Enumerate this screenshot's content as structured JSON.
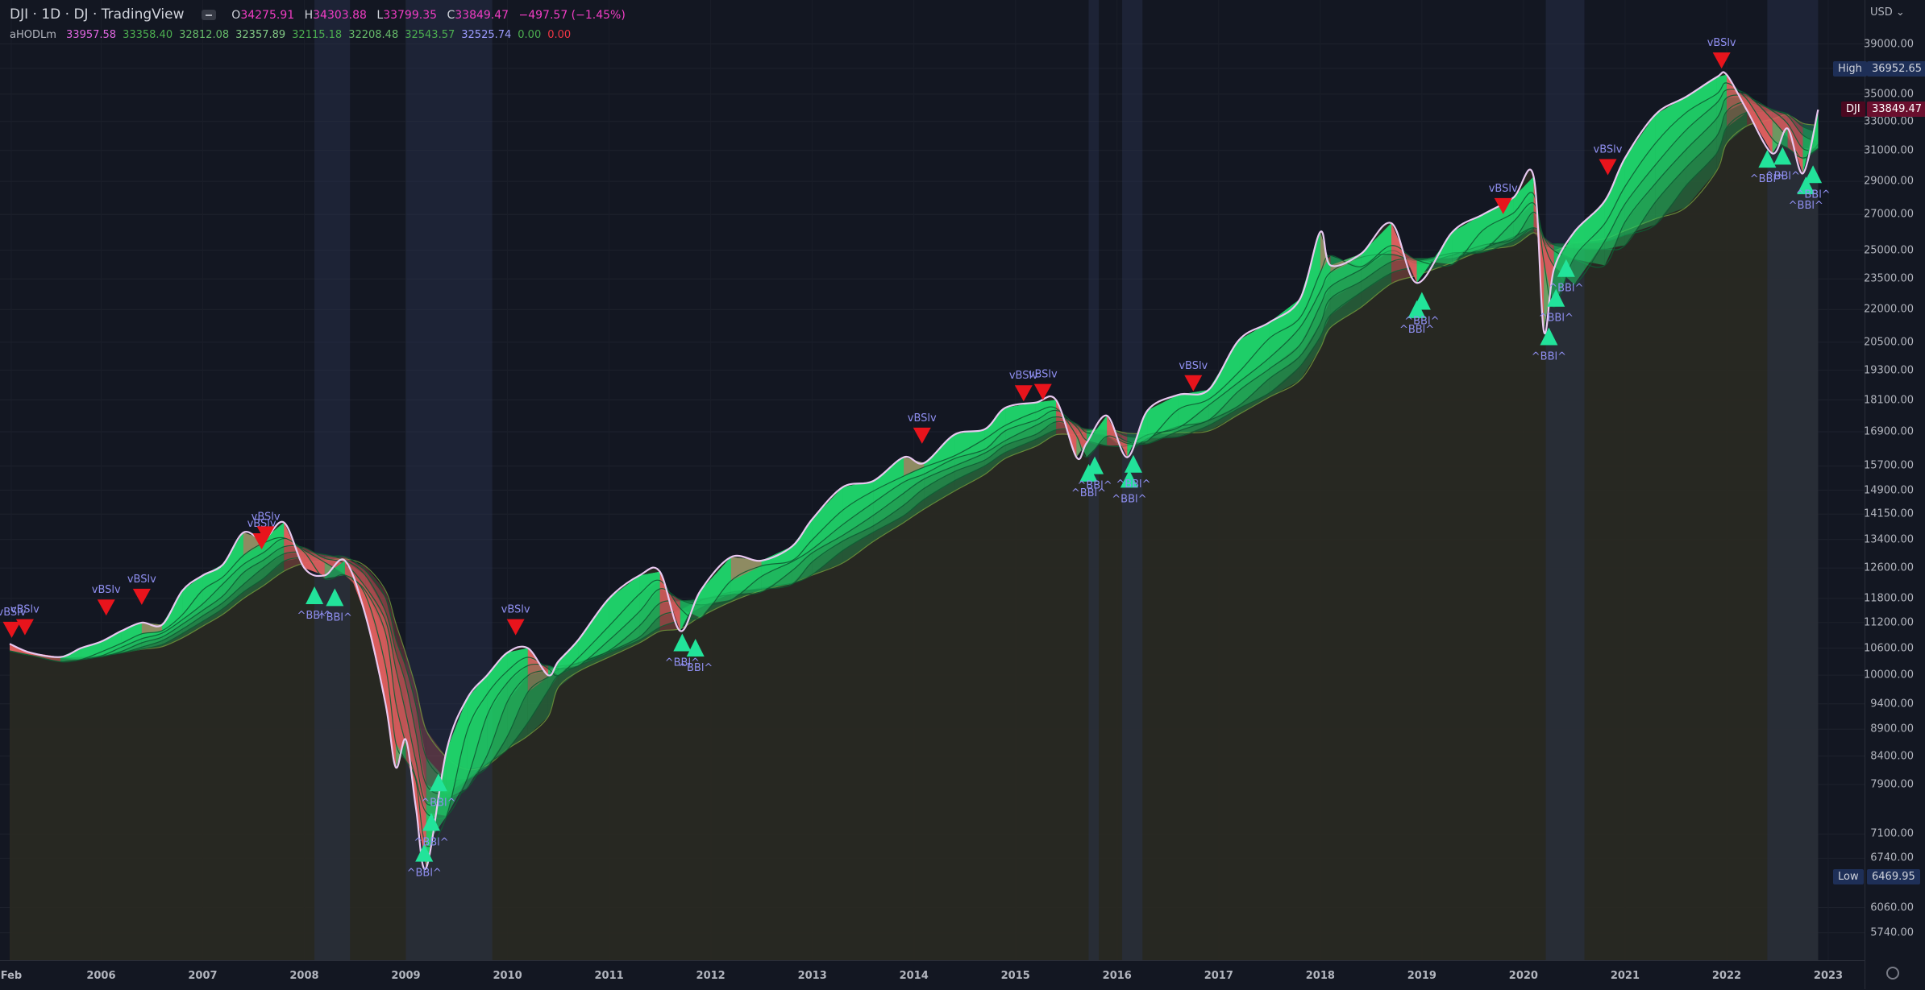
{
  "header": {
    "symbol": "DJI · 1D · DJ · TradingView",
    "ohlc": {
      "open_label": "O",
      "open": "34275.91",
      "high_label": "H",
      "high": "34303.88",
      "low_label": "L",
      "low": "33799.35",
      "close_label": "C",
      "close": "33849.47",
      "change": "−497.57 (−1.45%)"
    }
  },
  "indicator": {
    "name": "aHODLm",
    "values": [
      "33957.58",
      "33358.40",
      "32812.08",
      "32357.89",
      "32115.18",
      "32208.48",
      "32543.57",
      "32525.74",
      "0.00",
      "0.00"
    ],
    "colors": [
      "#e066e0",
      "#4caf50",
      "#66bb6a",
      "#81c784",
      "#4caf50",
      "#66bb6a",
      "#4caf50",
      "#9c9cff",
      "#4caf50",
      "#f23645"
    ]
  },
  "price_axis": {
    "currency": "USD",
    "ticks": [
      "39000.00",
      "37000.00",
      "35000.00",
      "33000.00",
      "31000.00",
      "29000.00",
      "27000.00",
      "25000.00",
      "23500.00",
      "22000.00",
      "20500.00",
      "19300.00",
      "18100.00",
      "16900.00",
      "15700.00",
      "14900.00",
      "14150.00",
      "13400.00",
      "12600.00",
      "11800.00",
      "11200.00",
      "10600.00",
      "10000.00",
      "9400.00",
      "8900.00",
      "8400.00",
      "7900.00",
      "7100.00",
      "6740.00",
      "6060.00",
      "5740.00"
    ],
    "badges": [
      {
        "label": "High",
        "value": "36952.65"
      },
      {
        "label": "DJI",
        "value": "33849.47"
      },
      {
        "label": "Low",
        "value": "6469.95"
      }
    ]
  },
  "time_axis": {
    "ticks": [
      "Feb",
      "2006",
      "2007",
      "2008",
      "2009",
      "2010",
      "2011",
      "2012",
      "2013",
      "2014",
      "2015",
      "2016",
      "2017",
      "2018",
      "2019",
      "2020",
      "2021",
      "2022",
      "2023"
    ]
  },
  "chart_data": {
    "type": "line",
    "y_scale": "log",
    "x_range": [
      2005.1,
      2023.0
    ],
    "ylim": [
      5600,
      40000
    ],
    "series": [
      {
        "name": "DJI",
        "x": [
          2005.1,
          2005.3,
          2005.6,
          2005.8,
          2006.0,
          2006.2,
          2006.4,
          2006.6,
          2006.8,
          2007.0,
          2007.2,
          2007.4,
          2007.6,
          2007.8,
          2008.0,
          2008.2,
          2008.4,
          2008.6,
          2008.8,
          2008.9,
          2009.0,
          2009.1,
          2009.2,
          2009.4,
          2009.6,
          2009.8,
          2010.0,
          2010.2,
          2010.4,
          2010.5,
          2010.7,
          2011.0,
          2011.3,
          2011.5,
          2011.7,
          2011.9,
          2012.2,
          2012.5,
          2012.8,
          2013.0,
          2013.3,
          2013.6,
          2013.9,
          2014.1,
          2014.4,
          2014.7,
          2014.9,
          2015.2,
          2015.4,
          2015.6,
          2015.7,
          2015.9,
          2016.1,
          2016.3,
          2016.6,
          2016.9,
          2017.2,
          2017.5,
          2017.8,
          2018.0,
          2018.1,
          2018.4,
          2018.7,
          2018.95,
          2019.3,
          2019.6,
          2019.9,
          2020.1,
          2020.2,
          2020.3,
          2020.5,
          2020.8,
          2021.0,
          2021.3,
          2021.6,
          2021.9,
          2022.0,
          2022.2,
          2022.45,
          2022.6,
          2022.75,
          2022.9
        ],
        "y": [
          10700,
          10500,
          10400,
          10600,
          10750,
          11000,
          11200,
          11150,
          12000,
          12400,
          12700,
          13600,
          13400,
          13900,
          12600,
          12400,
          12800,
          11400,
          9400,
          8200,
          8700,
          7500,
          6600,
          8500,
          9500,
          10000,
          10500,
          10600,
          10000,
          10300,
          10800,
          11800,
          12400,
          12500,
          11000,
          12000,
          12900,
          12800,
          13200,
          14000,
          15000,
          15200,
          16000,
          15800,
          16800,
          17000,
          17800,
          18000,
          18100,
          16000,
          16500,
          17500,
          16000,
          17700,
          18300,
          18500,
          20600,
          21400,
          22500,
          26000,
          24200,
          24800,
          26500,
          23300,
          26000,
          27000,
          28000,
          29300,
          21000,
          24000,
          26000,
          27800,
          30500,
          33500,
          34800,
          36300,
          36500,
          33800,
          30800,
          32500,
          29500,
          33849
        ]
      }
    ],
    "signals": {
      "sell_label": "vBSlv",
      "buy_label": "^BBl^",
      "sell": [
        [
          2005.12,
          10990
        ],
        [
          2005.25,
          11050
        ],
        [
          2006.05,
          11530
        ],
        [
          2006.4,
          11800
        ],
        [
          2007.58,
          13300
        ],
        [
          2007.62,
          13500
        ],
        [
          2010.08,
          11050
        ],
        [
          2014.08,
          16700
        ],
        [
          2015.08,
          18300
        ],
        [
          2015.27,
          18350
        ],
        [
          2016.75,
          18700
        ],
        [
          2019.8,
          27400
        ],
        [
          2020.83,
          29800
        ],
        [
          2021.95,
          37500
        ]
      ],
      "buy": [
        [
          2008.1,
          11900
        ],
        [
          2008.3,
          11850
        ],
        [
          2009.18,
          6830
        ],
        [
          2009.25,
          7300
        ],
        [
          2009.32,
          7950
        ],
        [
          2011.72,
          10750
        ],
        [
          2011.85,
          10630
        ],
        [
          2015.72,
          15500
        ],
        [
          2015.78,
          15750
        ],
        [
          2016.12,
          15300
        ],
        [
          2016.16,
          15800
        ],
        [
          2018.95,
          22050
        ],
        [
          2019.0,
          22450
        ],
        [
          2020.25,
          20800
        ],
        [
          2020.32,
          22600
        ],
        [
          2020.42,
          24100
        ],
        [
          2022.4,
          30500
        ],
        [
          2022.55,
          30700
        ],
        [
          2022.78,
          28800
        ],
        [
          2022.85,
          29500
        ]
      ]
    }
  }
}
